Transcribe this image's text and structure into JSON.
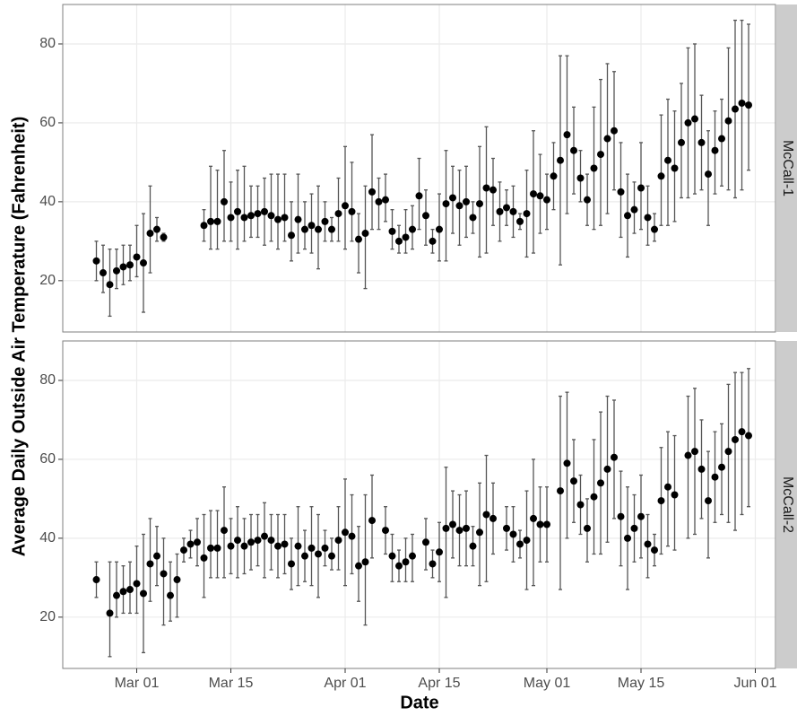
{
  "chart_data": {
    "type": "scatter",
    "x_label": "Date",
    "y_label": "Average Daily Outside Air Temperature (Fahrenheit)",
    "xlim": [
      "Feb 18",
      "Jun 04"
    ],
    "xticks": [
      "Mar 01",
      "Mar 15",
      "Apr 01",
      "Apr 15",
      "May 01",
      "May 15",
      "Jun 01"
    ],
    "grid": true,
    "point_color": "#000000",
    "errorbar_color": "#555555",
    "panels": [
      {
        "label": "McCall-1",
        "ylim": [
          7,
          90
        ],
        "yticks": [
          20,
          40,
          60,
          80
        ],
        "x": [
          "Feb 23",
          "Feb 24",
          "Feb 25",
          "Feb 26",
          "Feb 27",
          "Feb 28",
          "Mar 01",
          "Mar 02",
          "Mar 03",
          "Mar 04",
          "Mar 05",
          "Mar 11",
          "Mar 12",
          "Mar 13",
          "Mar 14",
          "Mar 15",
          "Mar 16",
          "Mar 17",
          "Mar 18",
          "Mar 19",
          "Mar 20",
          "Mar 21",
          "Mar 22",
          "Mar 23",
          "Mar 24",
          "Mar 25",
          "Mar 26",
          "Mar 27",
          "Mar 28",
          "Mar 29",
          "Mar 30",
          "Mar 31",
          "Apr 01",
          "Apr 02",
          "Apr 03",
          "Apr 04",
          "Apr 05",
          "Apr 06",
          "Apr 07",
          "Apr 08",
          "Apr 09",
          "Apr 10",
          "Apr 11",
          "Apr 12",
          "Apr 13",
          "Apr 14",
          "Apr 15",
          "Apr 16",
          "Apr 17",
          "Apr 18",
          "Apr 19",
          "Apr 20",
          "Apr 21",
          "Apr 22",
          "Apr 23",
          "Apr 24",
          "Apr 25",
          "Apr 26",
          "Apr 27",
          "Apr 28",
          "Apr 29",
          "Apr 30",
          "May 01",
          "May 02",
          "May 03",
          "May 04",
          "May 05",
          "May 06",
          "May 07",
          "May 08",
          "May 09",
          "May 10",
          "May 11",
          "May 12",
          "May 13",
          "May 14",
          "May 15",
          "May 16",
          "May 17",
          "May 18",
          "May 19",
          "May 20",
          "May 21",
          "May 22",
          "May 23",
          "May 24",
          "May 25",
          "May 26",
          "May 27",
          "May 28",
          "May 29",
          "May 30",
          "May 31"
        ],
        "values": [
          25,
          22,
          19,
          22.5,
          23.5,
          24,
          26,
          24.5,
          32,
          33,
          31,
          34,
          35,
          35,
          40,
          36,
          37.5,
          36,
          36.5,
          37,
          37.5,
          36.5,
          35.5,
          36,
          31.5,
          35.5,
          33,
          34,
          33,
          35,
          33,
          37,
          39,
          37.5,
          30.5,
          32,
          42.5,
          40,
          40.5,
          32.5,
          30,
          31,
          33,
          41.5,
          36.5,
          30,
          33,
          39.5,
          41,
          39,
          40,
          36,
          39.5,
          43.5,
          43,
          37.5,
          38.5,
          37.5,
          35,
          37,
          42,
          41.5,
          40.5,
          46.5,
          50.5,
          57,
          53,
          46,
          40.5,
          48.5,
          52,
          56,
          58,
          42.5,
          36.5,
          38,
          43.5,
          36,
          33,
          46.5,
          50.5,
          48.5,
          55,
          60,
          61,
          55,
          47,
          53,
          56,
          60.5,
          63.5,
          65,
          64.5
        ],
        "lower": [
          20,
          17,
          11,
          18,
          19,
          20,
          21,
          12,
          22,
          30,
          30,
          30,
          28,
          28,
          30,
          30,
          28,
          30,
          31,
          31,
          29,
          30,
          28,
          30,
          25,
          27,
          28,
          27,
          23,
          30,
          30,
          30,
          28,
          30,
          22,
          18,
          33,
          33,
          35,
          28,
          27,
          27,
          28,
          33,
          29,
          27,
          25,
          25,
          32,
          29,
          31,
          32,
          26,
          27,
          34,
          30,
          34,
          31,
          33,
          26,
          27,
          32,
          33,
          38,
          24,
          37,
          42,
          40,
          34,
          33,
          34,
          37,
          43,
          31,
          26,
          32,
          33,
          29,
          30,
          34,
          34,
          35,
          41,
          41,
          42,
          43,
          34,
          42,
          44,
          43,
          41,
          43,
          48
        ],
        "upper": [
          30,
          29,
          28,
          28,
          29,
          29,
          34,
          37,
          44,
          36,
          32,
          38,
          49,
          48,
          53,
          45,
          48,
          49,
          44,
          44,
          46,
          47,
          47,
          47,
          40,
          47,
          40,
          42,
          44,
          40,
          36,
          46,
          54,
          50,
          37,
          44,
          57,
          46,
          47,
          38,
          34,
          38,
          39,
          51,
          43,
          33,
          42,
          53,
          49,
          48,
          49,
          40,
          54,
          59,
          51,
          45,
          43,
          44,
          37,
          48,
          58,
          52,
          47,
          55,
          77,
          77,
          64,
          53,
          47,
          64,
          71,
          75,
          73,
          55,
          47,
          45,
          55,
          44,
          37,
          62,
          66,
          63,
          70,
          79,
          80,
          67,
          58,
          63,
          66,
          79,
          86,
          86,
          85
        ]
      },
      {
        "label": "McCall-2",
        "ylim": [
          7,
          90
        ],
        "yticks": [
          20,
          40,
          60,
          80
        ],
        "x": [
          "Feb 23",
          "Feb 25",
          "Feb 26",
          "Feb 27",
          "Feb 28",
          "Mar 01",
          "Mar 02",
          "Mar 03",
          "Mar 04",
          "Mar 05",
          "Mar 06",
          "Mar 07",
          "Mar 08",
          "Mar 09",
          "Mar 10",
          "Mar 11",
          "Mar 12",
          "Mar 13",
          "Mar 14",
          "Mar 15",
          "Mar 16",
          "Mar 17",
          "Mar 18",
          "Mar 19",
          "Mar 20",
          "Mar 21",
          "Mar 22",
          "Mar 23",
          "Mar 24",
          "Mar 25",
          "Mar 26",
          "Mar 27",
          "Mar 28",
          "Mar 29",
          "Mar 30",
          "Mar 31",
          "Apr 01",
          "Apr 02",
          "Apr 03",
          "Apr 04",
          "Apr 05",
          "Apr 07",
          "Apr 08",
          "Apr 09",
          "Apr 10",
          "Apr 11",
          "Apr 13",
          "Apr 14",
          "Apr 15",
          "Apr 16",
          "Apr 17",
          "Apr 18",
          "Apr 19",
          "Apr 20",
          "Apr 21",
          "Apr 22",
          "Apr 23",
          "Apr 25",
          "Apr 26",
          "Apr 27",
          "Apr 28",
          "Apr 29",
          "Apr 30",
          "May 01",
          "May 03",
          "May 04",
          "May 05",
          "May 06",
          "May 07",
          "May 08",
          "May 09",
          "May 10",
          "May 11",
          "May 12",
          "May 13",
          "May 14",
          "May 15",
          "May 16",
          "May 17",
          "May 18",
          "May 19",
          "May 20",
          "May 22",
          "May 23",
          "May 24",
          "May 25",
          "May 26",
          "May 27",
          "May 28",
          "May 29",
          "May 30",
          "May 31"
        ],
        "values": [
          29.5,
          21,
          25.5,
          26.5,
          27,
          28.5,
          26,
          33.5,
          35.5,
          31,
          25.5,
          29.5,
          37,
          38.5,
          39,
          35,
          37.5,
          37.5,
          42,
          38,
          39.5,
          38,
          39,
          39.5,
          40.5,
          39.5,
          38,
          38.5,
          33.5,
          38,
          35.5,
          37.5,
          36,
          37.5,
          35.5,
          39.5,
          41.5,
          40.5,
          33,
          34,
          44.5,
          42,
          35.5,
          33,
          34,
          35.5,
          39,
          33.5,
          36.5,
          42.5,
          43.5,
          42,
          42.5,
          38,
          41.5,
          46,
          45,
          42.5,
          41,
          38.5,
          39.5,
          45,
          43.5,
          43.5,
          52,
          59,
          54.5,
          48.5,
          42.5,
          50.5,
          54,
          57.5,
          60.5,
          45.5,
          40,
          42.5,
          45.5,
          38.5,
          37,
          49.5,
          53,
          51,
          61,
          62,
          57.5,
          49.5,
          55.5,
          58,
          62,
          65,
          67,
          66
        ],
        "lower": [
          25,
          10,
          20,
          21,
          21,
          21,
          11,
          24,
          28,
          18,
          19,
          20,
          34,
          35,
          33,
          25,
          30,
          30,
          30,
          31,
          30,
          31,
          32,
          33,
          30,
          32,
          30,
          31,
          27,
          28,
          29,
          28,
          25,
          33,
          32,
          32,
          28,
          31,
          24,
          18,
          35,
          36,
          29,
          29,
          29,
          29,
          32,
          30,
          29,
          25,
          35,
          33,
          33,
          33,
          28,
          29,
          36,
          37,
          34,
          35,
          27,
          28,
          34,
          34,
          27,
          40,
          44,
          41,
          34,
          36,
          36,
          39,
          45,
          33,
          27,
          34,
          35,
          30,
          33,
          36,
          38,
          37,
          40,
          41,
          45,
          35,
          44,
          46,
          44,
          42,
          46,
          48
        ],
        "upper": [
          34,
          34,
          34,
          33,
          34,
          38,
          41,
          45,
          43,
          40,
          34,
          36,
          40,
          42,
          45,
          46,
          47,
          47,
          53,
          45,
          48,
          45,
          46,
          46,
          49,
          46,
          46,
          46,
          40,
          48,
          42,
          48,
          46,
          42,
          40,
          48,
          55,
          51,
          43,
          51,
          56,
          48,
          41,
          37,
          40,
          41,
          45,
          37,
          44,
          58,
          52,
          51,
          52,
          43,
          54,
          61,
          54,
          48,
          48,
          42,
          52,
          60,
          53,
          53,
          76,
          77,
          65,
          56,
          50,
          65,
          72,
          76,
          75,
          57,
          53,
          51,
          56,
          46,
          41,
          63,
          67,
          66,
          76,
          78,
          70,
          62,
          67,
          69,
          79,
          82,
          82,
          83
        ]
      }
    ]
  }
}
